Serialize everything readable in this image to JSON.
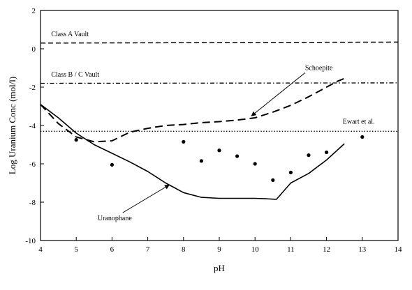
{
  "chart_data": {
    "type": "line",
    "title": "",
    "xlabel": "pH",
    "ylabel": "Log Uranium Conc (mol/l)",
    "xlim": [
      4,
      14
    ],
    "ylim": [
      -10,
      2
    ],
    "xticks": [
      4,
      5,
      6,
      7,
      8,
      9,
      10,
      11,
      12,
      13,
      14
    ],
    "yticks": [
      -10,
      -8,
      -6,
      -4,
      -2,
      0,
      2
    ],
    "grid": false,
    "series": [
      {
        "name": "Class A Vault",
        "style": "dashed",
        "x": [
          4,
          14
        ],
        "y": [
          0.3,
          0.35
        ]
      },
      {
        "name": "Class B / C Vault",
        "style": "dash-dot",
        "x": [
          4,
          14
        ],
        "y": [
          -1.8,
          -1.78
        ]
      },
      {
        "name": "Ewart et al.",
        "style": "dotted",
        "x": [
          4,
          14
        ],
        "y": [
          -4.3,
          -4.3
        ]
      },
      {
        "name": "Schoepite",
        "style": "long-dash",
        "x": [
          4.0,
          4.5,
          5.0,
          5.5,
          6.0,
          6.5,
          7.0,
          7.5,
          8.0,
          8.5,
          9.0,
          9.5,
          10.0,
          10.5,
          11.0,
          11.5,
          12.0,
          12.3,
          12.5
        ],
        "y": [
          -2.9,
          -3.9,
          -4.6,
          -4.85,
          -4.8,
          -4.35,
          -4.15,
          -4.0,
          -3.95,
          -3.85,
          -3.8,
          -3.72,
          -3.6,
          -3.3,
          -2.95,
          -2.5,
          -2.0,
          -1.7,
          -1.55
        ]
      },
      {
        "name": "Uranophane",
        "style": "solid",
        "x": [
          4.0,
          4.5,
          5.0,
          5.5,
          6.0,
          6.5,
          7.0,
          7.5,
          8.0,
          8.5,
          9.0,
          9.5,
          10.0,
          10.3,
          10.6,
          11.0,
          11.5,
          12.0,
          12.5
        ],
        "y": [
          -2.9,
          -3.6,
          -4.4,
          -5.0,
          -5.45,
          -5.9,
          -6.4,
          -7.0,
          -7.5,
          -7.75,
          -7.8,
          -7.8,
          -7.8,
          -7.82,
          -7.85,
          -7.0,
          -6.5,
          -5.8,
          -4.95
        ]
      },
      {
        "name": "",
        "style": "points",
        "x": [
          5.0,
          6.0,
          8.0,
          8.5,
          9.0,
          9.5,
          10.0,
          10.5,
          11.0,
          11.5,
          12.0,
          13.0
        ],
        "y": [
          -4.75,
          -6.05,
          -4.85,
          -5.85,
          -5.3,
          -5.6,
          -6.0,
          -6.85,
          -6.45,
          -5.55,
          -5.4,
          -4.6
        ]
      }
    ],
    "annotations": [
      {
        "text": "Class A Vault",
        "x": 4.3,
        "y": 0.65
      },
      {
        "text": "Class B / C Vault",
        "x": 4.3,
        "y": -1.45
      },
      {
        "text": "Schoepite",
        "x": 11.4,
        "y": -1.1
      },
      {
        "text": "Ewart et al.",
        "x": 12.9,
        "y": -3.9
      },
      {
        "text": "Uranophane",
        "x": 5.6,
        "y": -8.95
      }
    ],
    "arrows": [
      {
        "from": [
          11.4,
          -1.25
        ],
        "to": [
          9.9,
          -3.5
        ]
      },
      {
        "from": [
          6.3,
          -8.55
        ],
        "to": [
          7.6,
          -7.1
        ]
      }
    ]
  }
}
